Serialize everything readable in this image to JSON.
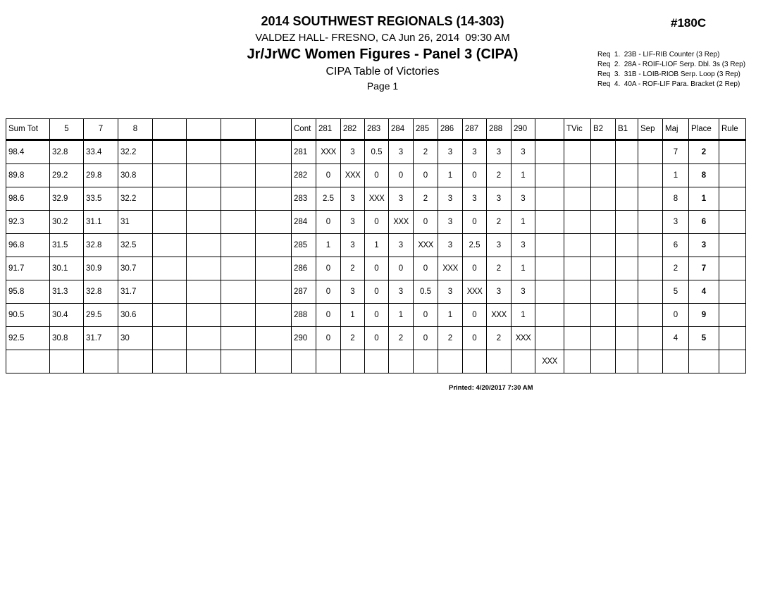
{
  "header": {
    "title": "2014 SOUTHWEST REGIONALS (14-303)",
    "venue_line": "VALDEZ HALL- FRESNO, CA Jun 26, 2014  09:30 AM",
    "event_title": "Jr/JrWC Women Figures - Panel 3 (CIPA)",
    "subtitle": "CIPA Table of Victories",
    "page_label": "Page 1",
    "sheet_number": "#180C",
    "requirements": [
      "Req  1.  23B - LIF-RIB Counter (3 Rep)",
      "Req  2.  28A - ROIF-LIOF Serp. Dbl. 3s (3 Rep)",
      "Req  3.  31B - LOIB-RIOB Serp. Loop (3 Rep)",
      "Req  4.  40A - ROF-LIF Para. Bracket (2 Rep)"
    ]
  },
  "table": {
    "columns": [
      "Sum Tot",
      "5",
      "7",
      "8",
      "",
      "",
      "",
      "",
      "Cont",
      "281",
      "282",
      "283",
      "284",
      "285",
      "286",
      "287",
      "288",
      "290",
      "",
      "TVic",
      "B2",
      "B1",
      "Sep",
      "Maj",
      "Place",
      "Rule"
    ],
    "rows": [
      [
        "98.4",
        "32.8",
        "33.4",
        "32.2",
        "",
        "",
        "",
        "",
        "281",
        "XXX",
        "3",
        "0.5",
        "3",
        "2",
        "3",
        "3",
        "3",
        "3",
        "",
        "",
        "",
        "",
        "",
        "7",
        "2",
        ""
      ],
      [
        "89.8",
        "29.2",
        "29.8",
        "30.8",
        "",
        "",
        "",
        "",
        "282",
        "0",
        "XXX",
        "0",
        "0",
        "0",
        "1",
        "0",
        "2",
        "1",
        "",
        "",
        "",
        "",
        "",
        "1",
        "8",
        ""
      ],
      [
        "98.6",
        "32.9",
        "33.5",
        "32.2",
        "",
        "",
        "",
        "",
        "283",
        "2.5",
        "3",
        "XXX",
        "3",
        "2",
        "3",
        "3",
        "3",
        "3",
        "",
        "",
        "",
        "",
        "",
        "8",
        "1",
        ""
      ],
      [
        "92.3",
        "30.2",
        "31.1",
        "31",
        "",
        "",
        "",
        "",
        "284",
        "0",
        "3",
        "0",
        "XXX",
        "0",
        "3",
        "0",
        "2",
        "1",
        "",
        "",
        "",
        "",
        "",
        "3",
        "6",
        ""
      ],
      [
        "96.8",
        "31.5",
        "32.8",
        "32.5",
        "",
        "",
        "",
        "",
        "285",
        "1",
        "3",
        "1",
        "3",
        "XXX",
        "3",
        "2.5",
        "3",
        "3",
        "",
        "",
        "",
        "",
        "",
        "6",
        "3",
        ""
      ],
      [
        "91.7",
        "30.1",
        "30.9",
        "30.7",
        "",
        "",
        "",
        "",
        "286",
        "0",
        "2",
        "0",
        "0",
        "0",
        "XXX",
        "0",
        "2",
        "1",
        "",
        "",
        "",
        "",
        "",
        "2",
        "7",
        ""
      ],
      [
        "95.8",
        "31.3",
        "32.8",
        "31.7",
        "",
        "",
        "",
        "",
        "287",
        "0",
        "3",
        "0",
        "3",
        "0.5",
        "3",
        "XXX",
        "3",
        "3",
        "",
        "",
        "",
        "",
        "",
        "5",
        "4",
        ""
      ],
      [
        "90.5",
        "30.4",
        "29.5",
        "30.6",
        "",
        "",
        "",
        "",
        "288",
        "0",
        "1",
        "0",
        "1",
        "0",
        "1",
        "0",
        "XXX",
        "1",
        "",
        "",
        "",
        "",
        "",
        "0",
        "9",
        ""
      ],
      [
        "92.5",
        "30.8",
        "31.7",
        "30",
        "",
        "",
        "",
        "",
        "290",
        "0",
        "2",
        "0",
        "2",
        "0",
        "2",
        "0",
        "2",
        "XXX",
        "",
        "",
        "",
        "",
        "",
        "4",
        "5",
        ""
      ],
      [
        "",
        "",
        "",
        "",
        "",
        "",
        "",
        "",
        "",
        "",
        "",
        "",
        "",
        "",
        "",
        "",
        "",
        "",
        "XXX",
        "",
        "",
        "",
        "",
        "",
        "",
        ""
      ]
    ]
  },
  "footer": {
    "printed": "Printed: 4/20/2017 7:30 AM"
  }
}
